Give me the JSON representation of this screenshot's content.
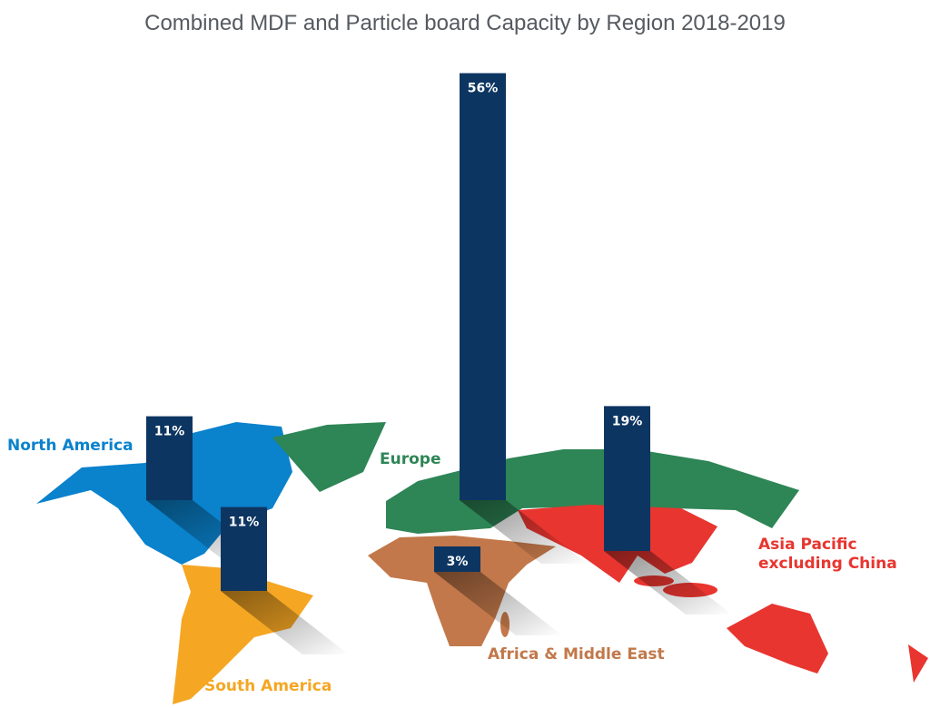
{
  "chart_data": {
    "type": "bar",
    "title": "Combined MDF and Particle board Capacity by Region 2018-2019",
    "categories": [
      "North America",
      "South America",
      "Europe",
      "Africa & Middle East",
      "Asia Pacific excluding China"
    ],
    "values": [
      11,
      11,
      56,
      3,
      19
    ],
    "value_labels": [
      "11%",
      "11%",
      "56%",
      "3%",
      "19%"
    ],
    "unit": "%",
    "bar_color": "#0d3561",
    "region_colors": {
      "North America": "#0a82cc",
      "South America": "#f5a623",
      "Europe": "#2e8556",
      "Africa & Middle East": "#c2784a",
      "Asia Pacific excluding China": "#e8352f"
    },
    "region_labels": {
      "north_america": "North America",
      "south_america": "South America",
      "europe": "Europe",
      "africa": "Africa & Middle East",
      "asia_line1": "Asia Pacific",
      "asia_line2": "excluding China"
    }
  }
}
